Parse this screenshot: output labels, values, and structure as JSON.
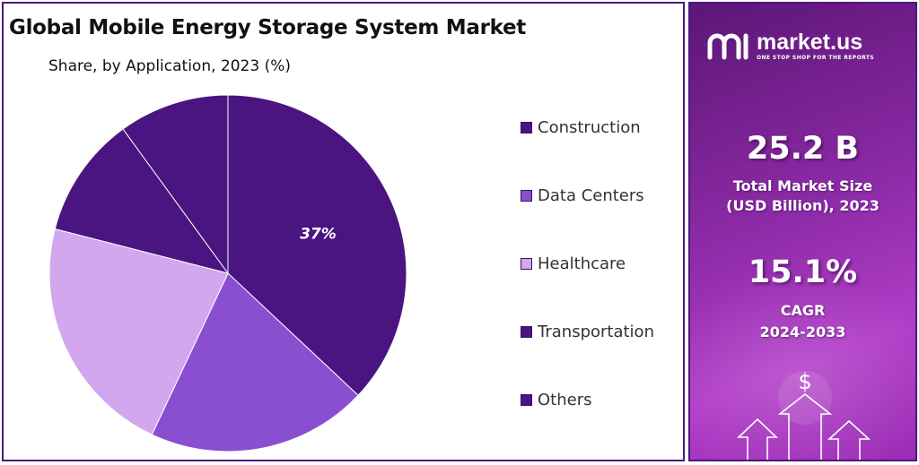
{
  "chart_data": {
    "type": "pie",
    "title": "Global Mobile Energy Storage System Market",
    "subtitle": "Share, by Application, 2023 (%)",
    "categories": [
      "Construction",
      "Data Centers",
      "Healthcare",
      "Transportation",
      "Others"
    ],
    "values": [
      37,
      20,
      22,
      11,
      10
    ],
    "colors": [
      "#4a1580",
      "#8a4fd0",
      "#d2a7ee",
      "#4a1580",
      "#4a1580"
    ],
    "data_labels": [
      "37%",
      null,
      null,
      null,
      null
    ],
    "legend_position": "right"
  },
  "brand": {
    "name": "market.us",
    "tagline": "ONE STOP SHOP FOR THE REPORTS",
    "logo_icon": "market-us-logo-icon"
  },
  "stats": {
    "market_size_value": "25.2 B",
    "market_size_caption_line1": "Total Market Size",
    "market_size_caption_line2": "(USD Billion), 2023",
    "cagr_value": "15.1%",
    "cagr_caption_line1": "CAGR",
    "cagr_caption_line2": "2024-2033"
  },
  "decor": {
    "dollar_symbol": "$",
    "growth_icon": "growth-arrows-icon"
  },
  "colors": {
    "panel_border": "#4a1a7a",
    "side_gradient_start": "#5c1677",
    "side_gradient_end": "#b13dc8"
  }
}
